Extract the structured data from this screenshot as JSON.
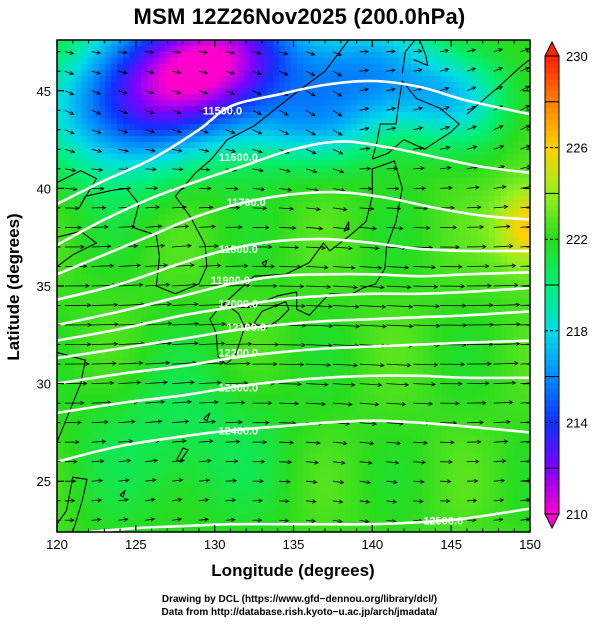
{
  "title": "MSM 12Z26Nov2025 (200.0hPa)",
  "chart_data": {
    "type": "heatmap",
    "title": "MSM 12Z26Nov2025 (200.0hPa)",
    "xlabel": "Longitude (degrees)",
    "ylabel": "Latitude  (degrees)",
    "xlim": [
      120,
      150
    ],
    "ylim": [
      22.4,
      47.6
    ],
    "xticks": [
      120,
      125,
      130,
      135,
      140,
      145,
      150
    ],
    "yticks": [
      25,
      30,
      35,
      40,
      45
    ],
    "colorbar": {
      "min": 210,
      "max": 230,
      "ticks": [
        210,
        214,
        218,
        222,
        226,
        230
      ],
      "colors": [
        "#ff00cc",
        "#8000ff",
        "#1030ff",
        "#00c8ff",
        "#00ff80",
        "#20e020",
        "#a0ff20",
        "#ffd000",
        "#ff8000",
        "#ff2000"
      ]
    },
    "contours": [
      {
        "label": "11500.0",
        "value": 11500,
        "points": [
          [
            120,
            39.2
          ],
          [
            123,
            40.4
          ],
          [
            126,
            41.5
          ],
          [
            129,
            43.0
          ],
          [
            131,
            44.2
          ],
          [
            134,
            44.8
          ],
          [
            137,
            45.3
          ],
          [
            140,
            45.5
          ],
          [
            143,
            45.2
          ],
          [
            146,
            44.5
          ],
          [
            150,
            43.8
          ]
        ]
      },
      {
        "label": "11600.0",
        "value": 11600,
        "points": [
          [
            120,
            37.1
          ],
          [
            123,
            38.4
          ],
          [
            126,
            39.5
          ],
          [
            129,
            40.4
          ],
          [
            132,
            41.2
          ],
          [
            135,
            42.0
          ],
          [
            138,
            42.4
          ],
          [
            141,
            42.1
          ],
          [
            144,
            41.6
          ],
          [
            147,
            41.1
          ],
          [
            150,
            40.8
          ]
        ]
      },
      {
        "label": "11700.0",
        "value": 11700,
        "points": [
          [
            120,
            35.6
          ],
          [
            123,
            36.6
          ],
          [
            126,
            37.6
          ],
          [
            129,
            38.6
          ],
          [
            132,
            39.3
          ],
          [
            135,
            39.7
          ],
          [
            138,
            39.8
          ],
          [
            141,
            39.5
          ],
          [
            144,
            39.0
          ],
          [
            147,
            38.6
          ],
          [
            150,
            38.4
          ]
        ]
      },
      {
        "label": "11800.0",
        "value": 11800,
        "points": [
          [
            120,
            34.3
          ],
          [
            124,
            35.1
          ],
          [
            128,
            36.2
          ],
          [
            131,
            36.9
          ],
          [
            134,
            37.3
          ],
          [
            137,
            37.4
          ],
          [
            140,
            37.2
          ],
          [
            143,
            36.9
          ],
          [
            146,
            36.8
          ],
          [
            150,
            36.8
          ]
        ]
      },
      {
        "label": "11900.0",
        "value": 11900,
        "points": [
          [
            120,
            33.0
          ],
          [
            124,
            33.7
          ],
          [
            128,
            34.5
          ],
          [
            131,
            35.1
          ],
          [
            134,
            35.5
          ],
          [
            137,
            35.6
          ],
          [
            140,
            35.6
          ],
          [
            143,
            35.5
          ],
          [
            146,
            35.6
          ],
          [
            150,
            35.7
          ]
        ]
      },
      {
        "label": "12000.0",
        "value": 12000,
        "points": [
          [
            120,
            32.2
          ],
          [
            124,
            32.8
          ],
          [
            128,
            33.5
          ],
          [
            131,
            33.9
          ],
          [
            134,
            34.3
          ],
          [
            137,
            34.5
          ],
          [
            140,
            34.6
          ],
          [
            143,
            34.6
          ],
          [
            146,
            34.7
          ],
          [
            150,
            34.9
          ]
        ]
      },
      {
        "label": "12100.0",
        "value": 12100,
        "points": [
          [
            120,
            31.3
          ],
          [
            124,
            31.8
          ],
          [
            128,
            32.3
          ],
          [
            131,
            32.7
          ],
          [
            134,
            33.0
          ],
          [
            137,
            33.2
          ],
          [
            140,
            33.3
          ],
          [
            143,
            33.4
          ],
          [
            146,
            33.5
          ],
          [
            150,
            33.7
          ]
        ]
      },
      {
        "label": "12200.0",
        "value": 12200,
        "points": [
          [
            120,
            30.0
          ],
          [
            124,
            30.5
          ],
          [
            128,
            30.9
          ],
          [
            131,
            31.3
          ],
          [
            134,
            31.6
          ],
          [
            137,
            31.8
          ],
          [
            140,
            31.9
          ],
          [
            143,
            32.0
          ],
          [
            146,
            32.1
          ],
          [
            150,
            32.2
          ]
        ]
      },
      {
        "label": "12300.0",
        "value": 12300,
        "points": [
          [
            120,
            28.5
          ],
          [
            124,
            29.0
          ],
          [
            128,
            29.4
          ],
          [
            131,
            29.8
          ],
          [
            134,
            30.1
          ],
          [
            137,
            30.3
          ],
          [
            140,
            30.4
          ],
          [
            143,
            30.4
          ],
          [
            146,
            30.3
          ],
          [
            150,
            30.3
          ]
        ]
      },
      {
        "label": "12400.0",
        "value": 12400,
        "points": [
          [
            120,
            26.0
          ],
          [
            124,
            26.8
          ],
          [
            128,
            27.3
          ],
          [
            131,
            27.6
          ],
          [
            134,
            27.8
          ],
          [
            137,
            28.0
          ],
          [
            140,
            28.1
          ],
          [
            143,
            28.0
          ],
          [
            146,
            27.8
          ],
          [
            150,
            27.5
          ]
        ]
      },
      {
        "label": "12500.0",
        "value": 12500,
        "points": [
          [
            122,
            22.4
          ],
          [
            125,
            22.6
          ],
          [
            128,
            22.7
          ],
          [
            131,
            22.8
          ],
          [
            134,
            22.8
          ],
          [
            137,
            22.8
          ],
          [
            140,
            22.8
          ],
          [
            143,
            22.9
          ],
          [
            146,
            23.1
          ],
          [
            150,
            23.6
          ]
        ]
      }
    ],
    "contour_label_positions": [
      {
        "label": "11500.0",
        "lon": 130.5,
        "lat": 44.0
      },
      {
        "label": "11600.0",
        "lon": 131.5,
        "lat": 41.6
      },
      {
        "label": "11700.0",
        "lon": 132.0,
        "lat": 39.3
      },
      {
        "label": "11800.0",
        "lon": 131.5,
        "lat": 36.9
      },
      {
        "label": "11900.0",
        "lon": 131.0,
        "lat": 35.3
      },
      {
        "label": "12000.0",
        "lon": 131.5,
        "lat": 34.1
      },
      {
        "label": "12100.0",
        "lon": 132.0,
        "lat": 32.9
      },
      {
        "label": "12200.0",
        "lon": 131.5,
        "lat": 31.6
      },
      {
        "label": "12300.0",
        "lon": 131.5,
        "lat": 29.8
      },
      {
        "label": "12400.0",
        "lon": 131.5,
        "lat": 27.6
      },
      {
        "label": "12500.0",
        "lon": 144.5,
        "lat": 23.0
      }
    ],
    "grid": false,
    "legend": "colorbar-right"
  },
  "credits": {
    "line1": "Drawing by DCL (https://www.gfd−dennou.org/library/dcl/)",
    "line2": "Data from http://database.rish.kyoto−u.ac.jp/arch/jmadata/"
  },
  "colors": {
    "contour": "#ffffff",
    "coast": "#000000",
    "vector": "#000000"
  }
}
